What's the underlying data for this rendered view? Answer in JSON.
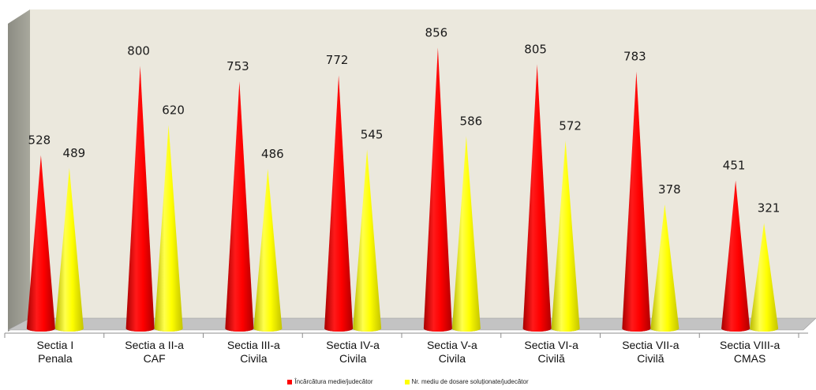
{
  "chart_data": {
    "type": "bar",
    "style": "3d-cone",
    "categories": [
      [
        "Sectia I",
        "Penala"
      ],
      [
        "Sectia a II-a",
        "CAF"
      ],
      [
        "Sectia III-a",
        "Civila"
      ],
      [
        "Sectia IV-a",
        "Civila"
      ],
      [
        "Sectia V-a",
        "Civila"
      ],
      [
        "Sectia VI-a",
        "Civilă"
      ],
      [
        "Sectia VII-a",
        "Civilă"
      ],
      [
        "Sectia VIII-a",
        "CMAS"
      ]
    ],
    "series": [
      {
        "name": "Încărcătura medie/judecător",
        "color": "#ff0000",
        "values": [
          528,
          800,
          753,
          772,
          856,
          805,
          783,
          451
        ]
      },
      {
        "name": "Nr. mediu de dosare soluționate/judecător",
        "color": "#ffff00",
        "values": [
          489,
          620,
          486,
          545,
          586,
          572,
          378,
          321
        ]
      }
    ],
    "ylim": [
      0,
      900
    ],
    "grid": false,
    "legend_position": "bottom",
    "wall_color": "#ebe8dd",
    "floor_color": "#c3c3c3"
  }
}
